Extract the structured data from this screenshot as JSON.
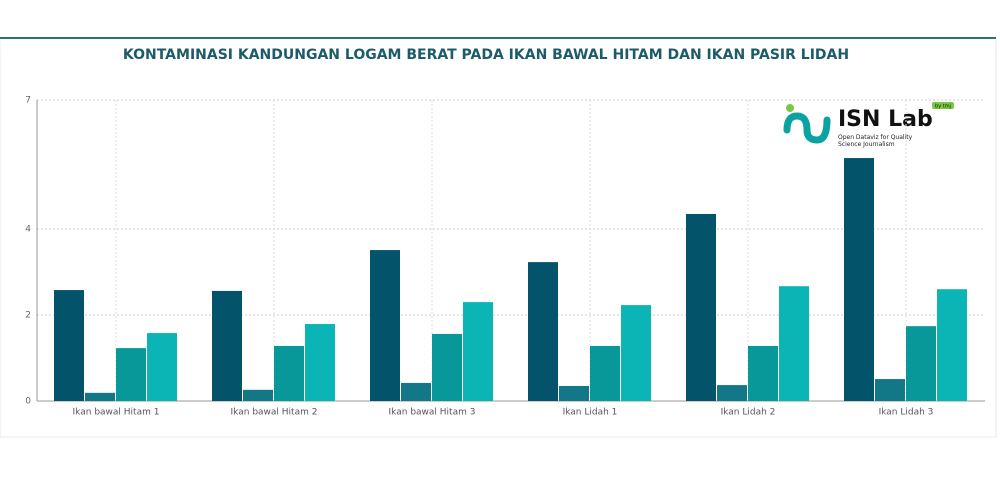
{
  "chart_data": {
    "type": "bar",
    "title": "KONTAMINASI KANDUNGAN LOGAM BERAT PADA IKAN BAWAL HITAM DAN IKAN PASIR LIDAH",
    "categories": [
      "Ikan bawal Hitam 1",
      "Ikan bawal Hitam 2",
      "Ikan bawal Hitam 3",
      "Ikan Lidah 1",
      "Ikan Lidah 2",
      "Ikan Lidah 3"
    ],
    "series": [
      {
        "color": "#03546a",
        "values": [
          2.58,
          2.56,
          3.51,
          3.23,
          4.35,
          5.65
        ]
      },
      {
        "color": "#127786",
        "values": [
          0.19,
          0.26,
          0.42,
          0.35,
          0.37,
          0.51
        ]
      },
      {
        "color": "#089899",
        "values": [
          1.23,
          1.28,
          1.56,
          1.28,
          1.28,
          1.74
        ]
      },
      {
        "color": "#0bb5b5",
        "values": [
          1.58,
          1.79,
          2.3,
          2.23,
          2.67,
          2.6
        ]
      }
    ],
    "ylim": [
      0,
      7
    ],
    "yticks": [
      0,
      2,
      4,
      7
    ],
    "grid": true
  },
  "logo": {
    "name": "ISN Lab",
    "badge": "by tmj",
    "tagline": "Open Dataviz for Quality Science Journalism"
  }
}
